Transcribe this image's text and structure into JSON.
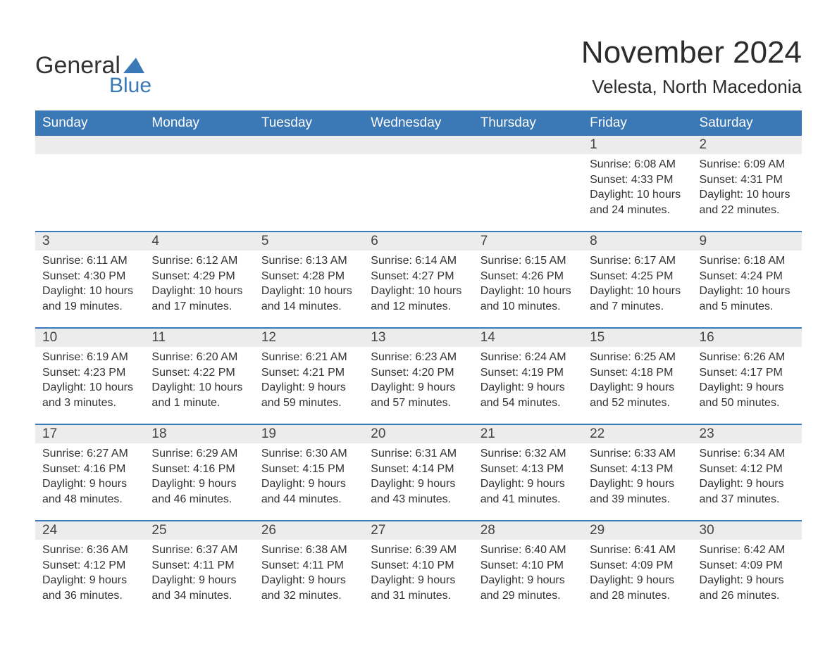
{
  "logo": {
    "main": "General",
    "sub": "Blue"
  },
  "header": {
    "month_title": "November 2024",
    "location": "Velesta, North Macedonia"
  },
  "colors": {
    "header_bg": "#3a78b6",
    "header_text": "#ffffff",
    "daynum_bg": "#ececec",
    "row_border": "#3a78b6",
    "text": "#333333",
    "logo_blue": "#3a78b6"
  },
  "weekdays": [
    "Sunday",
    "Monday",
    "Tuesday",
    "Wednesday",
    "Thursday",
    "Friday",
    "Saturday"
  ],
  "weeks": [
    {
      "daynums": [
        "",
        "",
        "",
        "",
        "",
        "1",
        "2"
      ],
      "cells": [
        null,
        null,
        null,
        null,
        null,
        {
          "sunrise": "Sunrise: 6:08 AM",
          "sunset": "Sunset: 4:33 PM",
          "dl1": "Daylight: 10 hours",
          "dl2": "and 24 minutes."
        },
        {
          "sunrise": "Sunrise: 6:09 AM",
          "sunset": "Sunset: 4:31 PM",
          "dl1": "Daylight: 10 hours",
          "dl2": "and 22 minutes."
        }
      ]
    },
    {
      "daynums": [
        "3",
        "4",
        "5",
        "6",
        "7",
        "8",
        "9"
      ],
      "cells": [
        {
          "sunrise": "Sunrise: 6:11 AM",
          "sunset": "Sunset: 4:30 PM",
          "dl1": "Daylight: 10 hours",
          "dl2": "and 19 minutes."
        },
        {
          "sunrise": "Sunrise: 6:12 AM",
          "sunset": "Sunset: 4:29 PM",
          "dl1": "Daylight: 10 hours",
          "dl2": "and 17 minutes."
        },
        {
          "sunrise": "Sunrise: 6:13 AM",
          "sunset": "Sunset: 4:28 PM",
          "dl1": "Daylight: 10 hours",
          "dl2": "and 14 minutes."
        },
        {
          "sunrise": "Sunrise: 6:14 AM",
          "sunset": "Sunset: 4:27 PM",
          "dl1": "Daylight: 10 hours",
          "dl2": "and 12 minutes."
        },
        {
          "sunrise": "Sunrise: 6:15 AM",
          "sunset": "Sunset: 4:26 PM",
          "dl1": "Daylight: 10 hours",
          "dl2": "and 10 minutes."
        },
        {
          "sunrise": "Sunrise: 6:17 AM",
          "sunset": "Sunset: 4:25 PM",
          "dl1": "Daylight: 10 hours",
          "dl2": "and 7 minutes."
        },
        {
          "sunrise": "Sunrise: 6:18 AM",
          "sunset": "Sunset: 4:24 PM",
          "dl1": "Daylight: 10 hours",
          "dl2": "and 5 minutes."
        }
      ]
    },
    {
      "daynums": [
        "10",
        "11",
        "12",
        "13",
        "14",
        "15",
        "16"
      ],
      "cells": [
        {
          "sunrise": "Sunrise: 6:19 AM",
          "sunset": "Sunset: 4:23 PM",
          "dl1": "Daylight: 10 hours",
          "dl2": "and 3 minutes."
        },
        {
          "sunrise": "Sunrise: 6:20 AM",
          "sunset": "Sunset: 4:22 PM",
          "dl1": "Daylight: 10 hours",
          "dl2": "and 1 minute."
        },
        {
          "sunrise": "Sunrise: 6:21 AM",
          "sunset": "Sunset: 4:21 PM",
          "dl1": "Daylight: 9 hours",
          "dl2": "and 59 minutes."
        },
        {
          "sunrise": "Sunrise: 6:23 AM",
          "sunset": "Sunset: 4:20 PM",
          "dl1": "Daylight: 9 hours",
          "dl2": "and 57 minutes."
        },
        {
          "sunrise": "Sunrise: 6:24 AM",
          "sunset": "Sunset: 4:19 PM",
          "dl1": "Daylight: 9 hours",
          "dl2": "and 54 minutes."
        },
        {
          "sunrise": "Sunrise: 6:25 AM",
          "sunset": "Sunset: 4:18 PM",
          "dl1": "Daylight: 9 hours",
          "dl2": "and 52 minutes."
        },
        {
          "sunrise": "Sunrise: 6:26 AM",
          "sunset": "Sunset: 4:17 PM",
          "dl1": "Daylight: 9 hours",
          "dl2": "and 50 minutes."
        }
      ]
    },
    {
      "daynums": [
        "17",
        "18",
        "19",
        "20",
        "21",
        "22",
        "23"
      ],
      "cells": [
        {
          "sunrise": "Sunrise: 6:27 AM",
          "sunset": "Sunset: 4:16 PM",
          "dl1": "Daylight: 9 hours",
          "dl2": "and 48 minutes."
        },
        {
          "sunrise": "Sunrise: 6:29 AM",
          "sunset": "Sunset: 4:16 PM",
          "dl1": "Daylight: 9 hours",
          "dl2": "and 46 minutes."
        },
        {
          "sunrise": "Sunrise: 6:30 AM",
          "sunset": "Sunset: 4:15 PM",
          "dl1": "Daylight: 9 hours",
          "dl2": "and 44 minutes."
        },
        {
          "sunrise": "Sunrise: 6:31 AM",
          "sunset": "Sunset: 4:14 PM",
          "dl1": "Daylight: 9 hours",
          "dl2": "and 43 minutes."
        },
        {
          "sunrise": "Sunrise: 6:32 AM",
          "sunset": "Sunset: 4:13 PM",
          "dl1": "Daylight: 9 hours",
          "dl2": "and 41 minutes."
        },
        {
          "sunrise": "Sunrise: 6:33 AM",
          "sunset": "Sunset: 4:13 PM",
          "dl1": "Daylight: 9 hours",
          "dl2": "and 39 minutes."
        },
        {
          "sunrise": "Sunrise: 6:34 AM",
          "sunset": "Sunset: 4:12 PM",
          "dl1": "Daylight: 9 hours",
          "dl2": "and 37 minutes."
        }
      ]
    },
    {
      "daynums": [
        "24",
        "25",
        "26",
        "27",
        "28",
        "29",
        "30"
      ],
      "cells": [
        {
          "sunrise": "Sunrise: 6:36 AM",
          "sunset": "Sunset: 4:12 PM",
          "dl1": "Daylight: 9 hours",
          "dl2": "and 36 minutes."
        },
        {
          "sunrise": "Sunrise: 6:37 AM",
          "sunset": "Sunset: 4:11 PM",
          "dl1": "Daylight: 9 hours",
          "dl2": "and 34 minutes."
        },
        {
          "sunrise": "Sunrise: 6:38 AM",
          "sunset": "Sunset: 4:11 PM",
          "dl1": "Daylight: 9 hours",
          "dl2": "and 32 minutes."
        },
        {
          "sunrise": "Sunrise: 6:39 AM",
          "sunset": "Sunset: 4:10 PM",
          "dl1": "Daylight: 9 hours",
          "dl2": "and 31 minutes."
        },
        {
          "sunrise": "Sunrise: 6:40 AM",
          "sunset": "Sunset: 4:10 PM",
          "dl1": "Daylight: 9 hours",
          "dl2": "and 29 minutes."
        },
        {
          "sunrise": "Sunrise: 6:41 AM",
          "sunset": "Sunset: 4:09 PM",
          "dl1": "Daylight: 9 hours",
          "dl2": "and 28 minutes."
        },
        {
          "sunrise": "Sunrise: 6:42 AM",
          "sunset": "Sunset: 4:09 PM",
          "dl1": "Daylight: 9 hours",
          "dl2": "and 26 minutes."
        }
      ]
    }
  ]
}
